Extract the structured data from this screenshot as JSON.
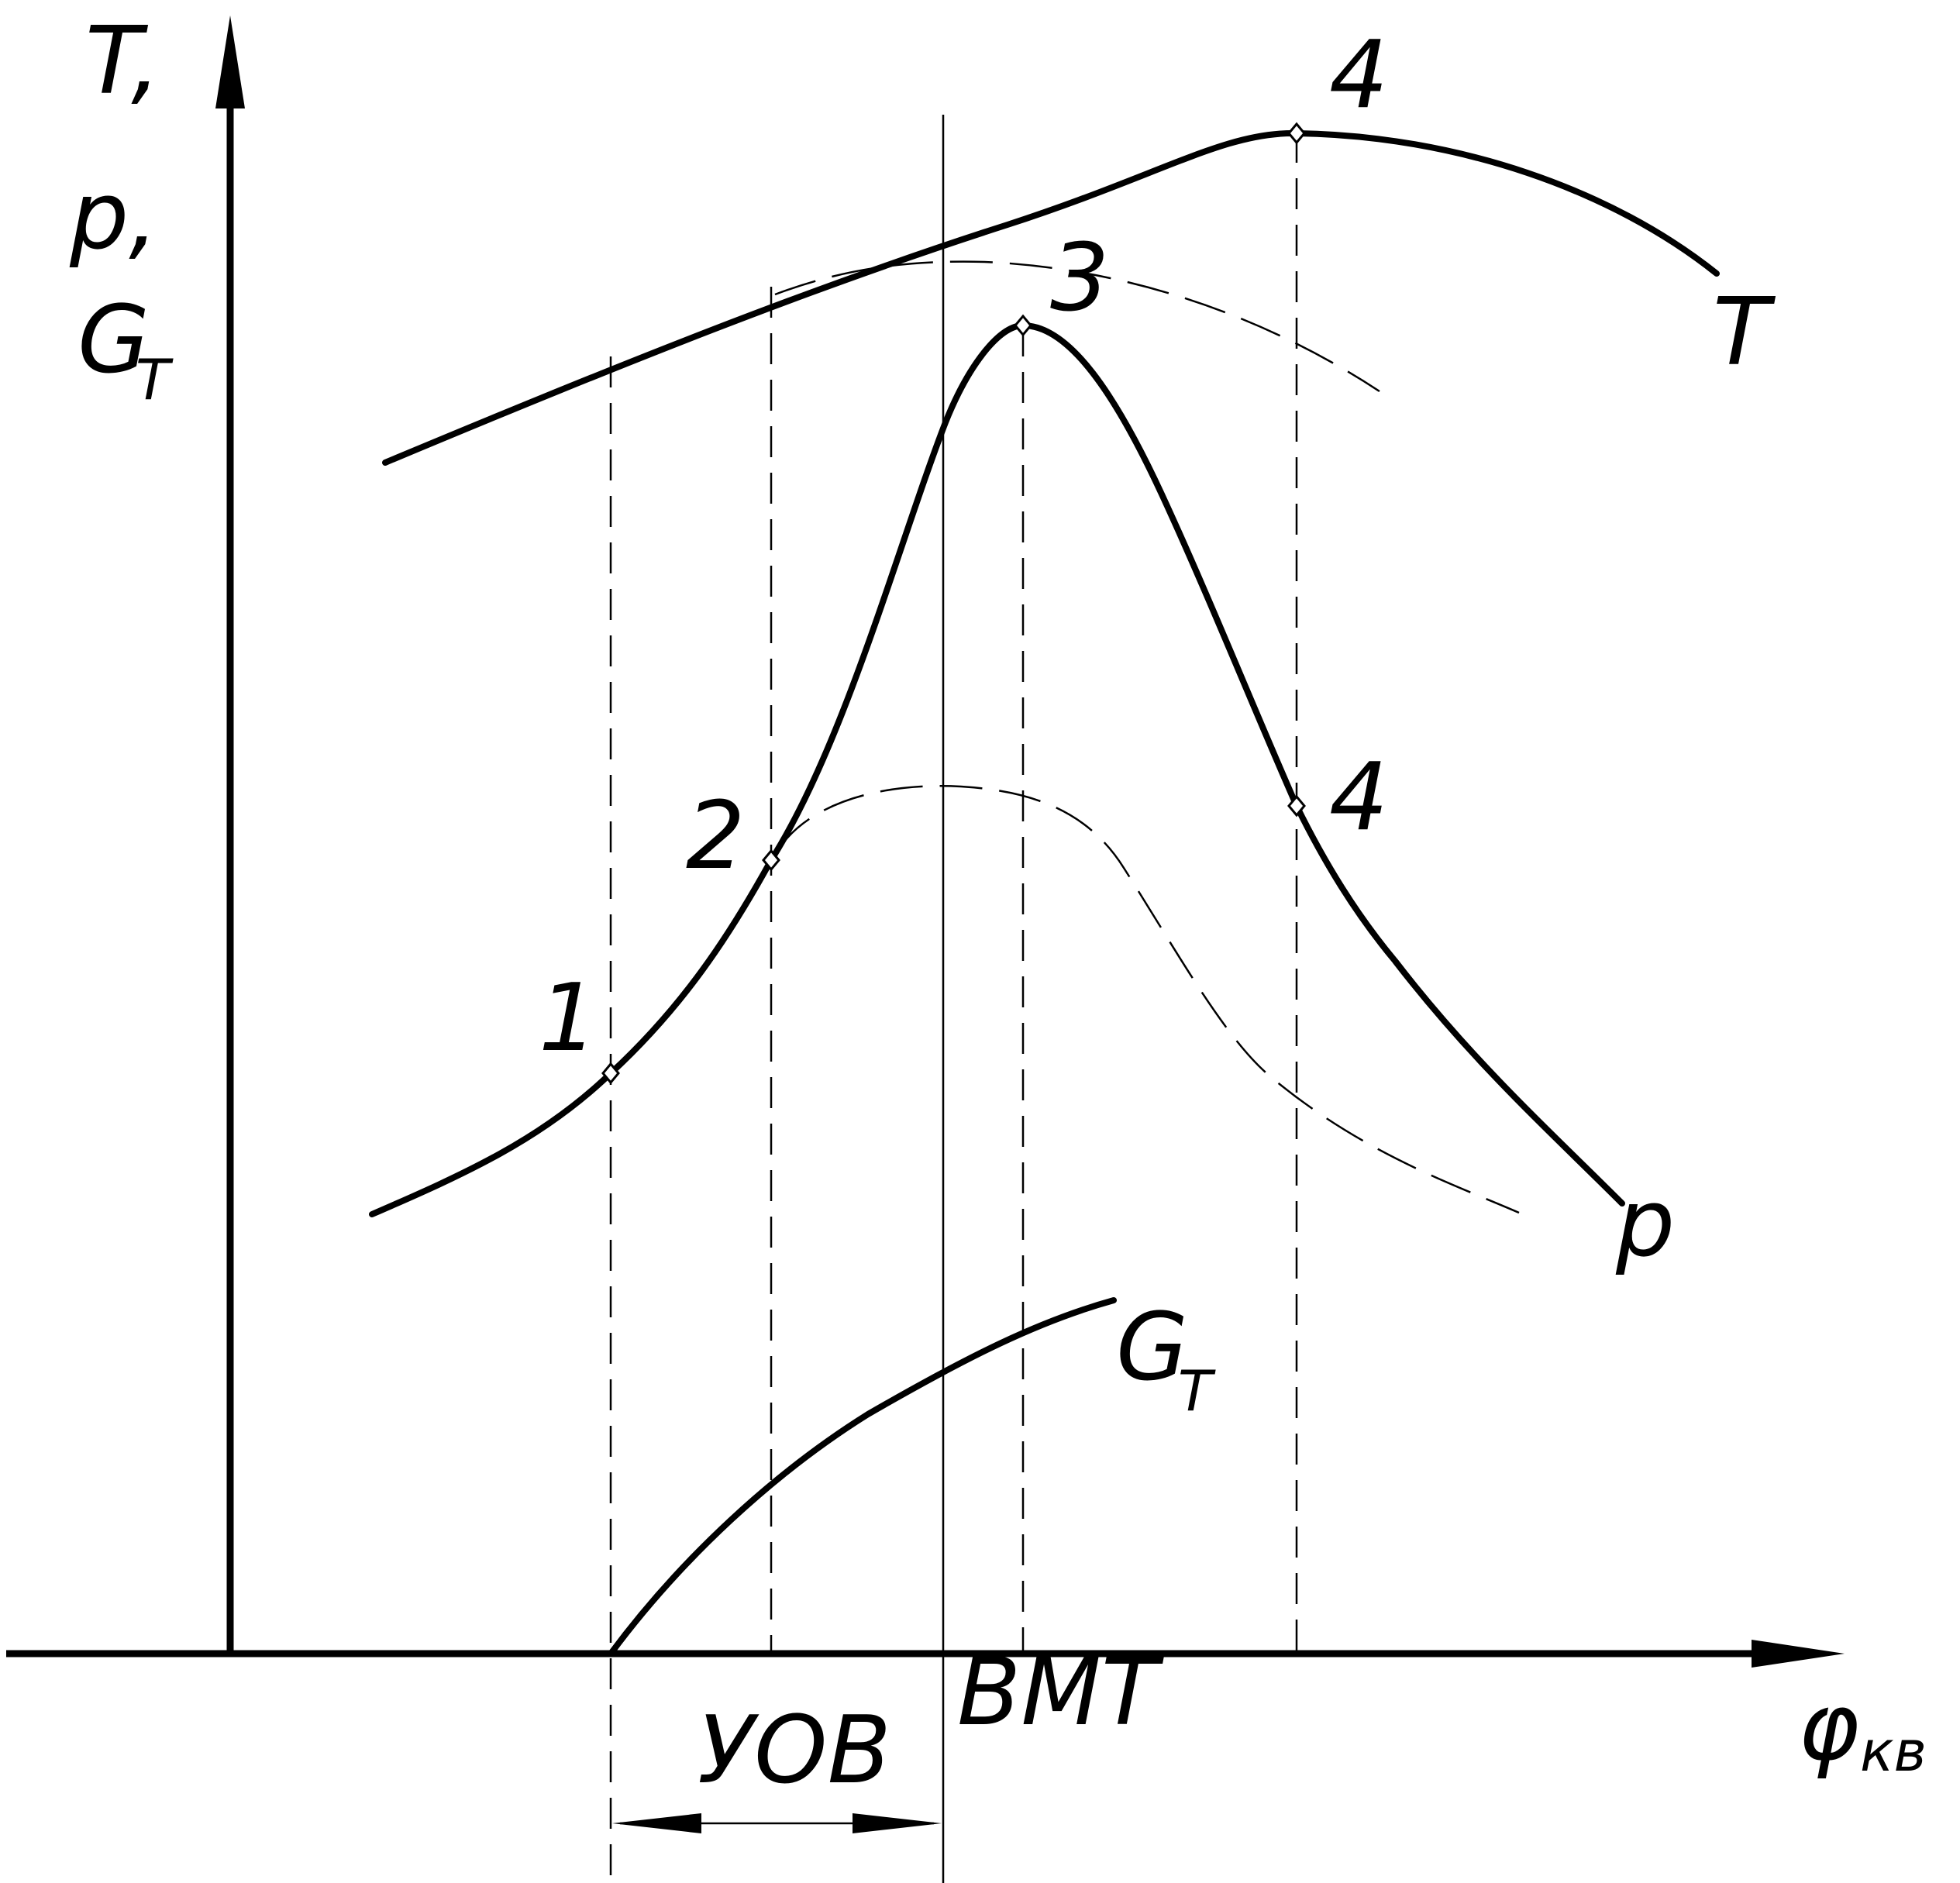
{
  "y_axis_label": {
    "line1": "T,",
    "line2": "p,",
    "line3_main": "G",
    "line3_sub": "T"
  },
  "x_axis_label": {
    "main": "φ",
    "sub": "кв"
  },
  "curve_labels": {
    "T": "T",
    "p": "p",
    "G_main": "G",
    "G_sub": "T"
  },
  "point_labels": [
    "1",
    "2",
    "3",
    "4",
    "4"
  ],
  "x_markers": {
    "tdc": "ВМТ",
    "injection_advance": "УОВ"
  }
}
